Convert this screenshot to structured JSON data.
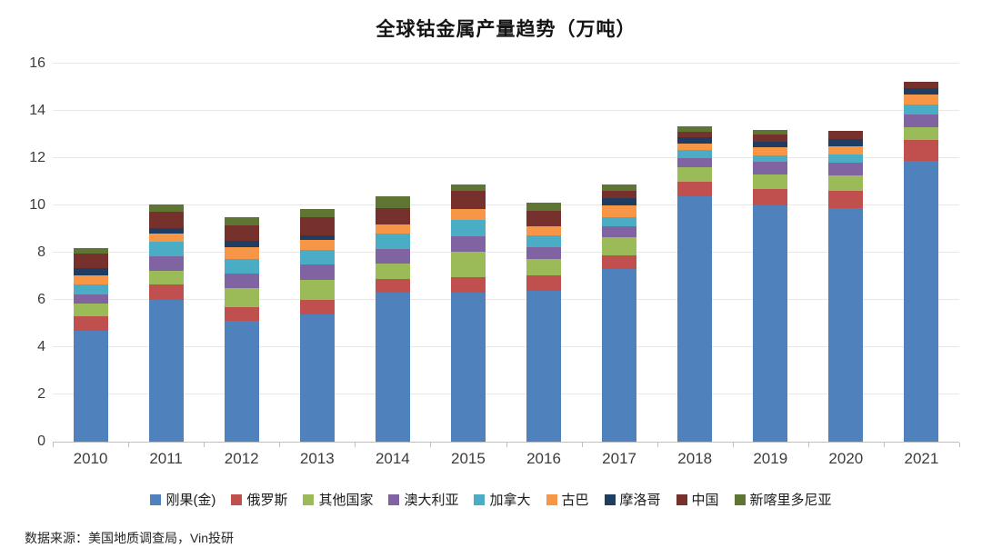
{
  "title": "全球钴金属产量趋势（万吨）",
  "source_note": "数据来源：美国地质调查局，Vin投研",
  "chart_data": {
    "type": "bar",
    "stacked": true,
    "title": "全球钴金属产量趋势（万吨）",
    "categories": [
      "2010",
      "2011",
      "2012",
      "2013",
      "2014",
      "2015",
      "2016",
      "2017",
      "2018",
      "2019",
      "2020",
      "2021"
    ],
    "series": [
      {
        "name": "刚果(金)",
        "color": "#4F81BD",
        "values": [
          4.7,
          6.0,
          5.1,
          5.4,
          6.3,
          6.3,
          6.4,
          7.3,
          10.4,
          10.0,
          9.9,
          11.9
        ]
      },
      {
        "name": "俄罗斯",
        "color": "#C0504D",
        "values": [
          0.6,
          0.65,
          0.6,
          0.6,
          0.6,
          0.65,
          0.65,
          0.6,
          0.6,
          0.7,
          0.73,
          0.87
        ]
      },
      {
        "name": "其他国家",
        "color": "#9BBB59",
        "values": [
          0.55,
          0.6,
          0.8,
          0.85,
          0.65,
          1.1,
          0.7,
          0.75,
          0.6,
          0.6,
          0.64,
          0.54
        ]
      },
      {
        "name": "澳大利亚",
        "color": "#8064A2",
        "values": [
          0.4,
          0.6,
          0.6,
          0.65,
          0.6,
          0.65,
          0.5,
          0.45,
          0.4,
          0.55,
          0.55,
          0.54
        ]
      },
      {
        "name": "加拿大",
        "color": "#4BACC6",
        "values": [
          0.4,
          0.6,
          0.65,
          0.6,
          0.65,
          0.7,
          0.5,
          0.4,
          0.33,
          0.28,
          0.32,
          0.42
        ]
      },
      {
        "name": "古巴",
        "color": "#F79646",
        "values": [
          0.4,
          0.35,
          0.5,
          0.45,
          0.4,
          0.45,
          0.38,
          0.5,
          0.3,
          0.35,
          0.38,
          0.42
        ]
      },
      {
        "name": "摩洛哥",
        "color": "#1F3C61",
        "values": [
          0.3,
          0.25,
          0.25,
          0.2,
          0,
          0,
          0,
          0.3,
          0.25,
          0.23,
          0.28,
          0.26
        ]
      },
      {
        "name": "中国",
        "color": "#76312C",
        "values": [
          0.6,
          0.7,
          0.65,
          0.75,
          0.7,
          0.75,
          0.65,
          0.3,
          0.22,
          0.28,
          0.36,
          0.28
        ]
      },
      {
        "name": "新喀里多尼亚",
        "color": "#5E7533",
        "values": [
          0.25,
          0.3,
          0.35,
          0.35,
          0.5,
          0.3,
          0.35,
          0.3,
          0.25,
          0.2,
          0,
          0
        ]
      }
    ],
    "xlabel": "",
    "ylabel": "",
    "ylim": [
      0,
      16
    ],
    "yticks": [
      0,
      2,
      4,
      6,
      8,
      10,
      12,
      14,
      16
    ],
    "grid": true,
    "legend_position": "bottom",
    "axis_color": "#bfbfbf",
    "gridline_color": "#e8e8e8",
    "label_color": "#3c3c3c"
  }
}
